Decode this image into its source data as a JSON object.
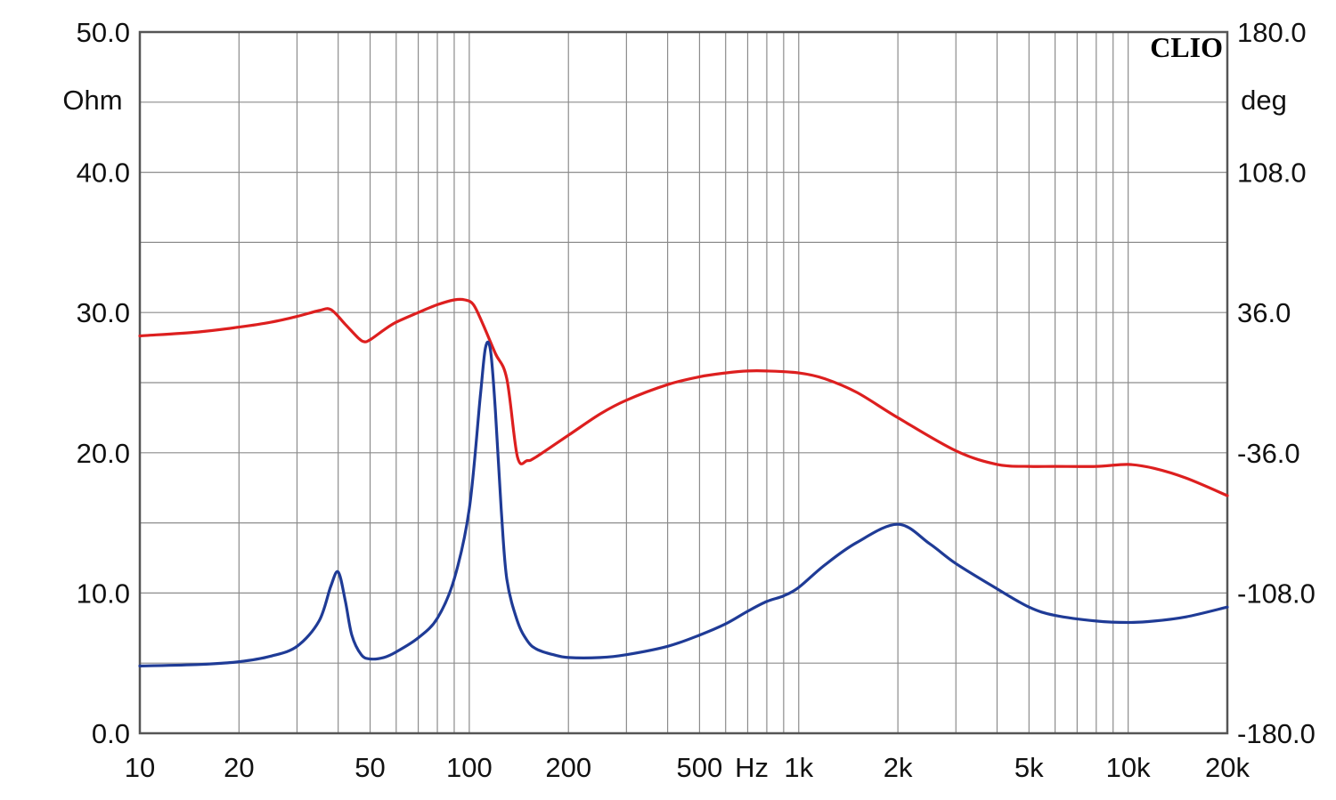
{
  "brand": "CLIO",
  "chart_data": {
    "type": "line",
    "title": "",
    "x_scale": "log",
    "xlim": [
      10,
      20000
    ],
    "grid": true,
    "x_ticks": [
      {
        "value": 10,
        "label": "10"
      },
      {
        "value": 20,
        "label": "20"
      },
      {
        "value": 50,
        "label": "50"
      },
      {
        "value": 100,
        "label": "100"
      },
      {
        "value": 200,
        "label": "200"
      },
      {
        "value": 500,
        "label": "500"
      },
      {
        "value": 1000,
        "label": "1k"
      },
      {
        "value": 2000,
        "label": "2k"
      },
      {
        "value": 5000,
        "label": "5k"
      },
      {
        "value": 10000,
        "label": "10k"
      },
      {
        "value": 20000,
        "label": "20k"
      }
    ],
    "x_unit_label": "Hz",
    "y_left": {
      "unit": "Ohm",
      "ylim": [
        0,
        50
      ],
      "ticks": [
        {
          "value": 0,
          "label": "0.0"
        },
        {
          "value": 10,
          "label": "10.0"
        },
        {
          "value": 20,
          "label": "20.0"
        },
        {
          "value": 30,
          "label": "30.0"
        },
        {
          "value": 40,
          "label": "40.0"
        },
        {
          "value": 50,
          "label": "50.0"
        }
      ]
    },
    "y_right": {
      "unit": "deg",
      "ylim": [
        -180,
        180
      ],
      "ticks": [
        {
          "value": -180,
          "label": "-180.0"
        },
        {
          "value": -108,
          "label": "-108.0"
        },
        {
          "value": -36,
          "label": "-36.0"
        },
        {
          "value": 36,
          "label": "36.0"
        },
        {
          "value": 108,
          "label": "108.0"
        },
        {
          "value": 180,
          "label": "180.0"
        }
      ]
    },
    "series": [
      {
        "axis": "right",
        "color": "#dd1f1f",
        "x": [
          10,
          15,
          20,
          25,
          30,
          35,
          38,
          42,
          46,
          48,
          50,
          55,
          60,
          70,
          80,
          90,
          97,
          103,
          110,
          120,
          130,
          140,
          150,
          160,
          200,
          250,
          300,
          400,
          500,
          600,
          700,
          800,
          1000,
          1200,
          1500,
          2000,
          3000,
          4000,
          5000,
          6000,
          8000,
          10000,
          12000,
          15000,
          20000
        ],
        "y": [
          24,
          26,
          28.5,
          31,
          34,
          37,
          37.5,
          30,
          23,
          21,
          22,
          27,
          31,
          36,
          40,
          42.5,
          42.5,
          40,
          30,
          15,
          2,
          -38,
          -40,
          -38,
          -27,
          -16,
          -9,
          -1,
          3,
          5,
          6,
          6,
          5,
          2,
          -5,
          -18,
          -35,
          -42,
          -43,
          -43,
          -43,
          -42,
          -44,
          -49,
          -58
        ]
      },
      {
        "axis": "left",
        "color": "#1f3b96",
        "x": [
          10,
          15,
          20,
          25,
          30,
          35,
          38,
          40,
          42,
          44,
          47,
          50,
          55,
          60,
          70,
          80,
          90,
          100,
          108,
          112,
          116,
          120,
          125,
          130,
          140,
          150,
          160,
          180,
          200,
          250,
          300,
          400,
          500,
          600,
          700,
          800,
          900,
          1000,
          1200,
          1500,
          2000,
          2500,
          3000,
          4000,
          5000,
          6000,
          8000,
          10000,
          12000,
          15000,
          20000
        ],
        "y": [
          4.8,
          4.9,
          5.1,
          5.5,
          6.2,
          8,
          10.5,
          11.5,
          9.5,
          7,
          5.6,
          5.3,
          5.4,
          5.8,
          6.8,
          8.2,
          11,
          16,
          24,
          27.5,
          27.3,
          23,
          16,
          11,
          8,
          6.6,
          6.0,
          5.6,
          5.4,
          5.4,
          5.6,
          6.2,
          7.0,
          7.8,
          8.7,
          9.4,
          9.8,
          10.4,
          12,
          13.6,
          14.9,
          13.5,
          12.1,
          10.3,
          9.0,
          8.4,
          8.0,
          7.9,
          8.0,
          8.3,
          9.0
        ]
      }
    ]
  }
}
